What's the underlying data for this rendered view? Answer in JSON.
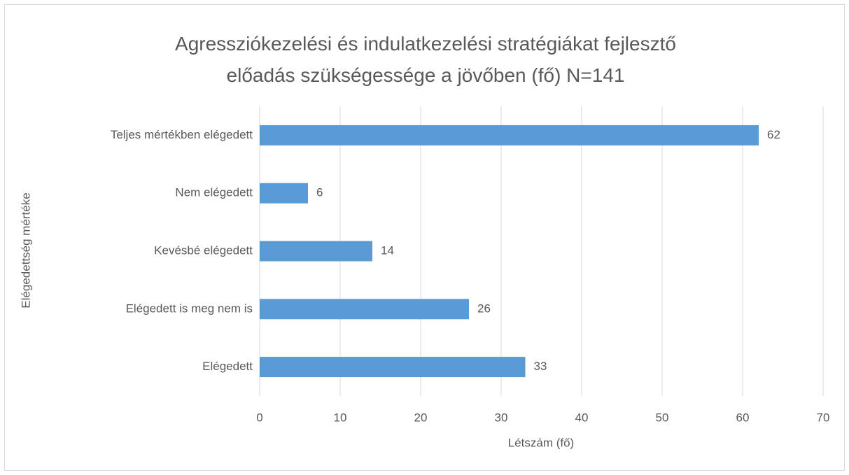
{
  "chart_data": {
    "type": "bar",
    "orientation": "horizontal",
    "title": "Agressziókezelési és indulatkezelési stratégiákat fejlesztő előadás szükségessége a jövőben (fő) N=141",
    "x_label": "Létszám (fő)",
    "y_label": "Elégedettség mértéke",
    "categories": [
      "Teljes mértékben elégedett",
      "Nem elégedett",
      "Kevésbé elégedett",
      "Elégedett is meg nem is",
      "Elégedett"
    ],
    "values": [
      62,
      6,
      14,
      26,
      33
    ],
    "color": "#5b9bd5",
    "xlim": [
      0,
      70
    ],
    "xticks": [
      0,
      10,
      20,
      30,
      40,
      50,
      60,
      70
    ],
    "grid": true
  }
}
